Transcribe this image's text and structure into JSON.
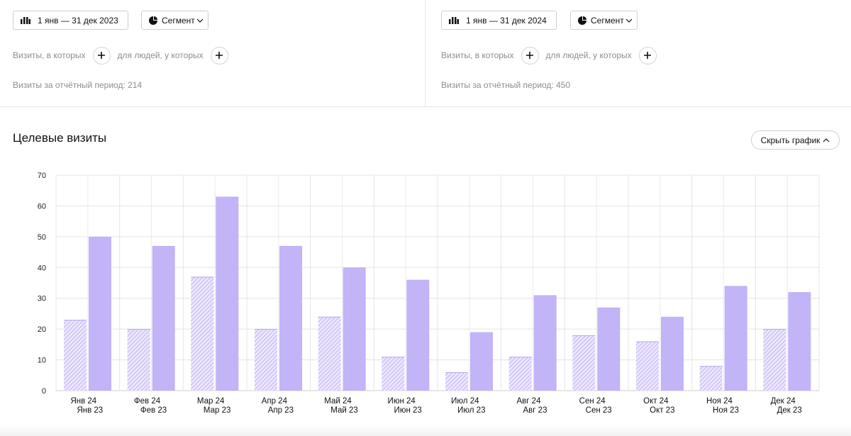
{
  "panels": [
    {
      "date_label": "1 янв — 31 дек 2023",
      "segment_label": "Сегмент",
      "filter_visits_label": "Визиты, в которых",
      "filter_people_label": "для людей, у которых",
      "visits_summary": "Визиты за отчётный период: 214"
    },
    {
      "date_label": "1 янв — 31 дек 2024",
      "segment_label": "Сегмент",
      "filter_visits_label": "Визиты, в которых",
      "filter_people_label": "для людей, у которых",
      "visits_summary": "Визиты за отчётный период: 450"
    }
  ],
  "section": {
    "title": "Целевые визиты",
    "hide_chart_label": "Скрыть график"
  },
  "icons": {
    "date": "calendar-grid-icon",
    "segment": "pie-chart-icon",
    "dropdown": "chevron-down-icon",
    "collapse": "chevron-up-icon",
    "add": "plus-icon"
  },
  "colors": {
    "bar_solid": "#c3b3f7",
    "bar_hatched": "#c3b3f7"
  },
  "chart_data": {
    "type": "bar",
    "categories": [
      [
        "Янв 24",
        "Янв 23"
      ],
      [
        "Фев 24",
        "Фев 23"
      ],
      [
        "Мар 24",
        "Мар 23"
      ],
      [
        "Апр 24",
        "Апр 23"
      ],
      [
        "Май 24",
        "Май 23"
      ],
      [
        "Июн 24",
        "Июн 23"
      ],
      [
        "Июл 24",
        "Июл 23"
      ],
      [
        "Авг 24",
        "Авг 23"
      ],
      [
        "Сен 24",
        "Сен 23"
      ],
      [
        "Окт 24",
        "Окт 23"
      ],
      [
        "Ноя 24",
        "Ноя 23"
      ],
      [
        "Дек 24",
        "Дек 23"
      ]
    ],
    "series": [
      {
        "style": "hatched",
        "values": [
          23,
          20,
          37,
          20,
          24,
          11,
          6,
          11,
          18,
          16,
          8,
          20
        ]
      },
      {
        "style": "solid",
        "values": [
          50,
          47,
          63,
          47,
          40,
          36,
          19,
          31,
          27,
          24,
          34,
          32
        ]
      }
    ],
    "y_ticks": [
      0,
      10,
      20,
      30,
      40,
      50,
      60,
      70
    ],
    "ylim": [
      0,
      70
    ],
    "grid": true
  }
}
